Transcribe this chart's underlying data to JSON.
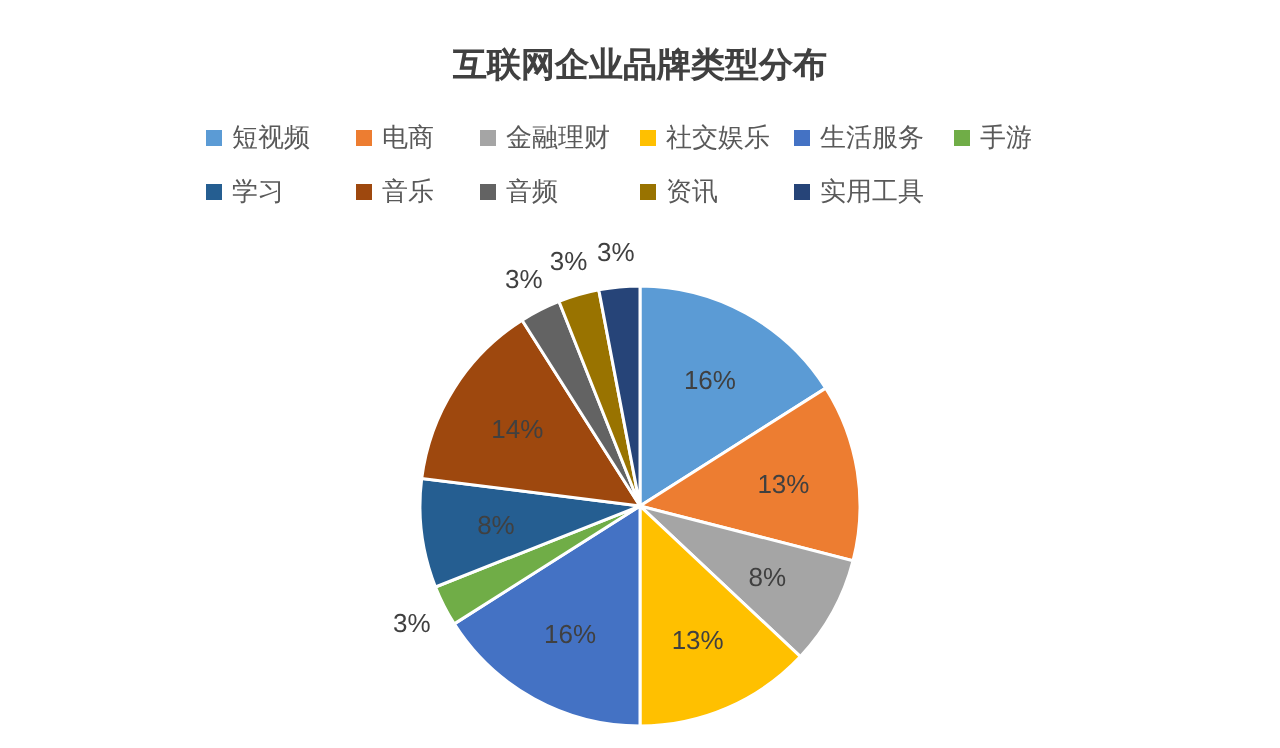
{
  "chart_data": {
    "type": "pie",
    "title": "互联网企业品牌类型分布",
    "categories": [
      "短视频",
      "电商",
      "金融理财",
      "社交娱乐",
      "生活服务",
      "手游",
      "学习",
      "音乐",
      "音频",
      "资讯",
      "实用工具"
    ],
    "values": [
      16,
      13,
      8,
      13,
      16,
      3,
      8,
      14,
      3,
      3,
      3
    ],
    "colors": [
      "#5b9bd5",
      "#ed7d31",
      "#a5a5a5",
      "#ffc000",
      "#4472c4",
      "#70ad47",
      "#255e91",
      "#9e480e",
      "#636363",
      "#997300",
      "#264478"
    ],
    "value_labels": [
      "16%",
      "13%",
      "8%",
      "13%",
      "16%",
      "3%",
      "8%",
      "14%",
      "3%",
      "3%",
      "3%"
    ],
    "legend": "top"
  }
}
